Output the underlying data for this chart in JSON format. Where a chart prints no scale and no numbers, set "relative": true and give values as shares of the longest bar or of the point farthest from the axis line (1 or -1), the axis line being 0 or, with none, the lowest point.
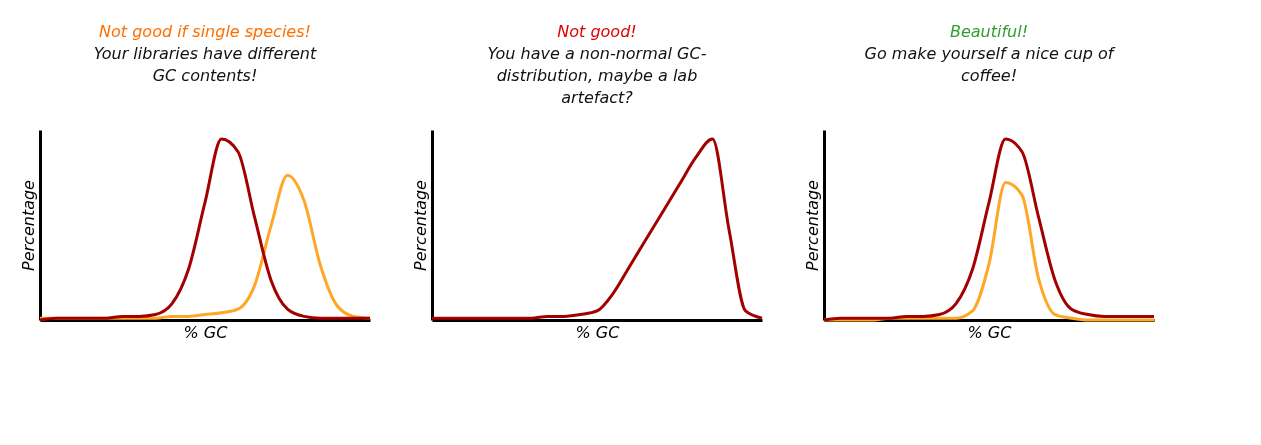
{
  "chart_data": [
    {
      "type": "line",
      "relative": true,
      "xlabel": "% GC",
      "ylabel": "Percentage",
      "annotations": [
        "Not good if single species!",
        "Your libraries have different GC contents!"
      ],
      "categories": [
        null,
        null,
        null,
        null,
        null,
        null,
        null,
        null,
        null,
        null,
        null,
        null,
        null,
        null,
        null,
        null,
        null,
        null,
        null,
        null,
        null
      ],
      "series": [
        {
          "color": "#a30000",
          "values": [
            0,
            0.01,
            0.01,
            0.01,
            0.01,
            0.02,
            0.02,
            0.03,
            0.09,
            0.28,
            0.65,
            1.0,
            0.93,
            0.57,
            0.22,
            0.06,
            0.02,
            0.01,
            0.01,
            0.01,
            0.01
          ]
        },
        {
          "color": "#ffa726",
          "values": [
            0.01,
            0.01,
            0.01,
            0.01,
            0.01,
            0.01,
            0.01,
            0.01,
            0.02,
            0.02,
            0.03,
            0.04,
            0.06,
            0.19,
            0.52,
            0.8,
            0.66,
            0.3,
            0.08,
            0.02,
            0.01
          ]
        }
      ]
    },
    {
      "type": "line",
      "relative": true,
      "xlabel": "% GC",
      "ylabel": "Percentage",
      "annotations": [
        "Not good!",
        "You have a non-normal GC-distribution, maybe a lab artefact?"
      ],
      "categories": [
        null,
        null,
        null,
        null,
        null,
        null,
        null,
        null,
        null,
        null,
        null,
        null,
        null,
        null,
        null,
        null,
        null,
        null,
        null,
        null,
        null
      ],
      "series": [
        {
          "color": "#a30000",
          "values": [
            0.01,
            0.01,
            0.01,
            0.01,
            0.01,
            0.01,
            0.01,
            0.02,
            0.02,
            0.03,
            0.05,
            0.15,
            0.3,
            0.45,
            0.6,
            0.75,
            0.9,
            1.0,
            0.5,
            0.05,
            0.01
          ]
        }
      ]
    },
    {
      "type": "line",
      "relative": true,
      "xlabel": "% GC",
      "ylabel": "Percentage",
      "annotations": [
        "Beautiful!",
        "Go make yourself a nice cup of coffee!"
      ],
      "categories": [
        null,
        null,
        null,
        null,
        null,
        null,
        null,
        null,
        null,
        null,
        null,
        null,
        null,
        null,
        null,
        null,
        null,
        null,
        null,
        null,
        null
      ],
      "series": [
        {
          "color": "#a30000",
          "values": [
            0,
            0.01,
            0.01,
            0.01,
            0.01,
            0.02,
            0.02,
            0.03,
            0.09,
            0.28,
            0.65,
            1.0,
            0.93,
            0.57,
            0.22,
            0.06,
            0.03,
            0.02,
            0.02,
            0.02,
            0.02
          ]
        },
        {
          "color": "#ffa726",
          "values": [
            0,
            0,
            0,
            0,
            0.01,
            0.01,
            0.01,
            0.01,
            0.01,
            0.05,
            0.31,
            0.76,
            0.69,
            0.23,
            0.03,
            0.01,
            0,
            0,
            0,
            0,
            0
          ]
        }
      ]
    }
  ]
}
